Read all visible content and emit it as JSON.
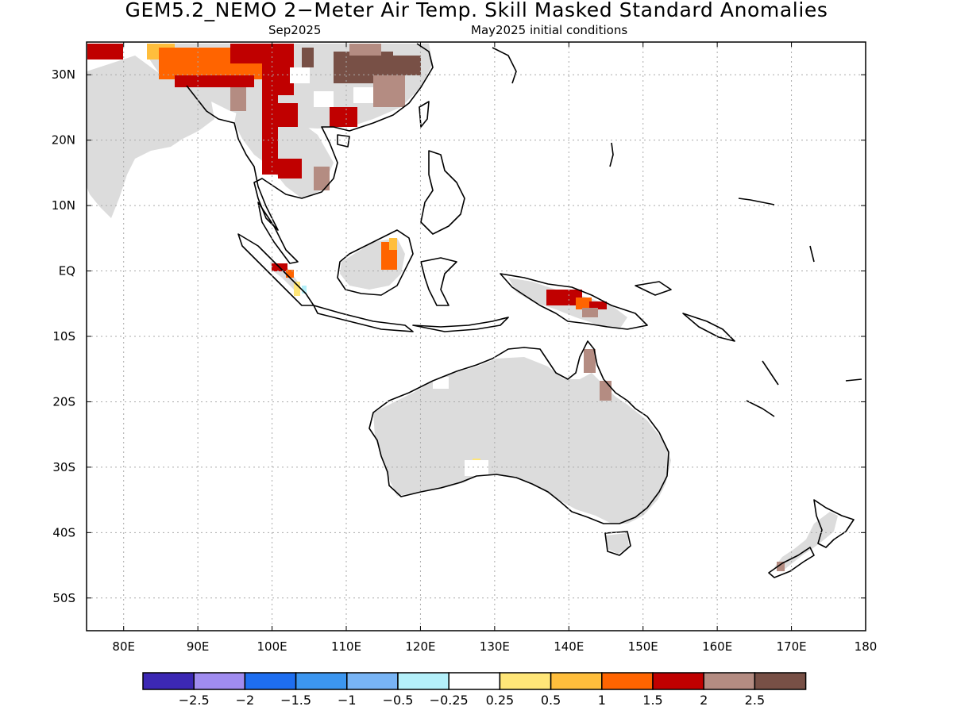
{
  "title": "GEM5.2_NEMO 2−Meter Air Temp. Skill Masked Standard Anomalies",
  "subtitle_left": "Sep2025",
  "subtitle_right": "May2025 initial conditions",
  "map": {
    "lon_range": [
      75,
      180
    ],
    "lat_range": [
      -55,
      35
    ],
    "lat_ticks": [
      "30N",
      "20N",
      "10N",
      "EQ",
      "10S",
      "20S",
      "30S",
      "40S",
      "50S"
    ],
    "lon_ticks": [
      "80E",
      "90E",
      "100E",
      "110E",
      "120E",
      "130E",
      "140E",
      "150E",
      "160E",
      "170E",
      "180"
    ],
    "grid": "dotted",
    "masked_color": "#dcdcdc"
  },
  "colorbar": {
    "colors": [
      "#3c28b4",
      "#a08cf0",
      "#1e6ef0",
      "#3c96f0",
      "#78b4f5",
      "#b4f0fa",
      "#ffffff",
      "#ffe678",
      "#ffbe3c",
      "#ff6400",
      "#c00000",
      "#b48c82",
      "#785046"
    ],
    "labels": [
      "−2.5",
      "−2",
      "−1.5",
      "−1",
      "−0.5",
      "−0.25",
      "0.25",
      "0.5",
      "1",
      "1.5",
      "2",
      "2.5"
    ]
  }
}
